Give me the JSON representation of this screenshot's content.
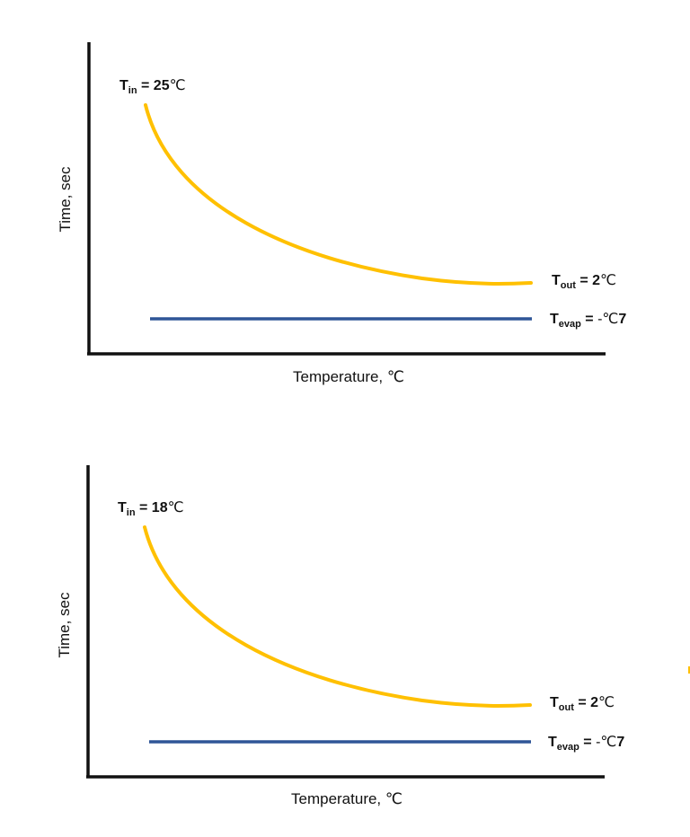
{
  "colors": {
    "curve": "#FFC000",
    "evap_line": "#2F5597",
    "axis": "#111111"
  },
  "chart_data": [
    {
      "type": "line",
      "xlabel": "Temperature, ℃",
      "ylabel": "Time, sec",
      "series": [
        {
          "name": "Water temperature curve",
          "description": "decays from inlet temperature toward outlet temperature"
        },
        {
          "name": "Evaporator temperature",
          "description": "constant horizontal line"
        }
      ],
      "annotations": {
        "t_in": {
          "sym": "T",
          "sub": "in",
          "eq": " = ",
          "num": "25",
          "unit": "℃"
        },
        "t_out": {
          "sym": "T",
          "sub": "out",
          "eq": " = ",
          "num": "2",
          "unit": "℃"
        },
        "t_evap": {
          "sym": "T",
          "sub": "evap",
          "eq": " = ",
          "pre": "-℃",
          "num": "7"
        }
      }
    },
    {
      "type": "line",
      "xlabel": "Temperature, ℃",
      "ylabel": "Time, sec",
      "series": [
        {
          "name": "Water temperature curve",
          "description": "decays from inlet temperature toward outlet temperature"
        },
        {
          "name": "Evaporator temperature",
          "description": "constant horizontal line"
        }
      ],
      "annotations": {
        "t_in": {
          "sym": "T",
          "sub": "in",
          "eq": " = ",
          "num": "18",
          "unit": "℃"
        },
        "t_out": {
          "sym": "T",
          "sub": "out",
          "eq": " = ",
          "num": "2",
          "unit": "℃"
        },
        "t_evap": {
          "sym": "T",
          "sub": "evap",
          "eq": " = ",
          "pre": "-℃",
          "num": "7"
        }
      }
    }
  ]
}
